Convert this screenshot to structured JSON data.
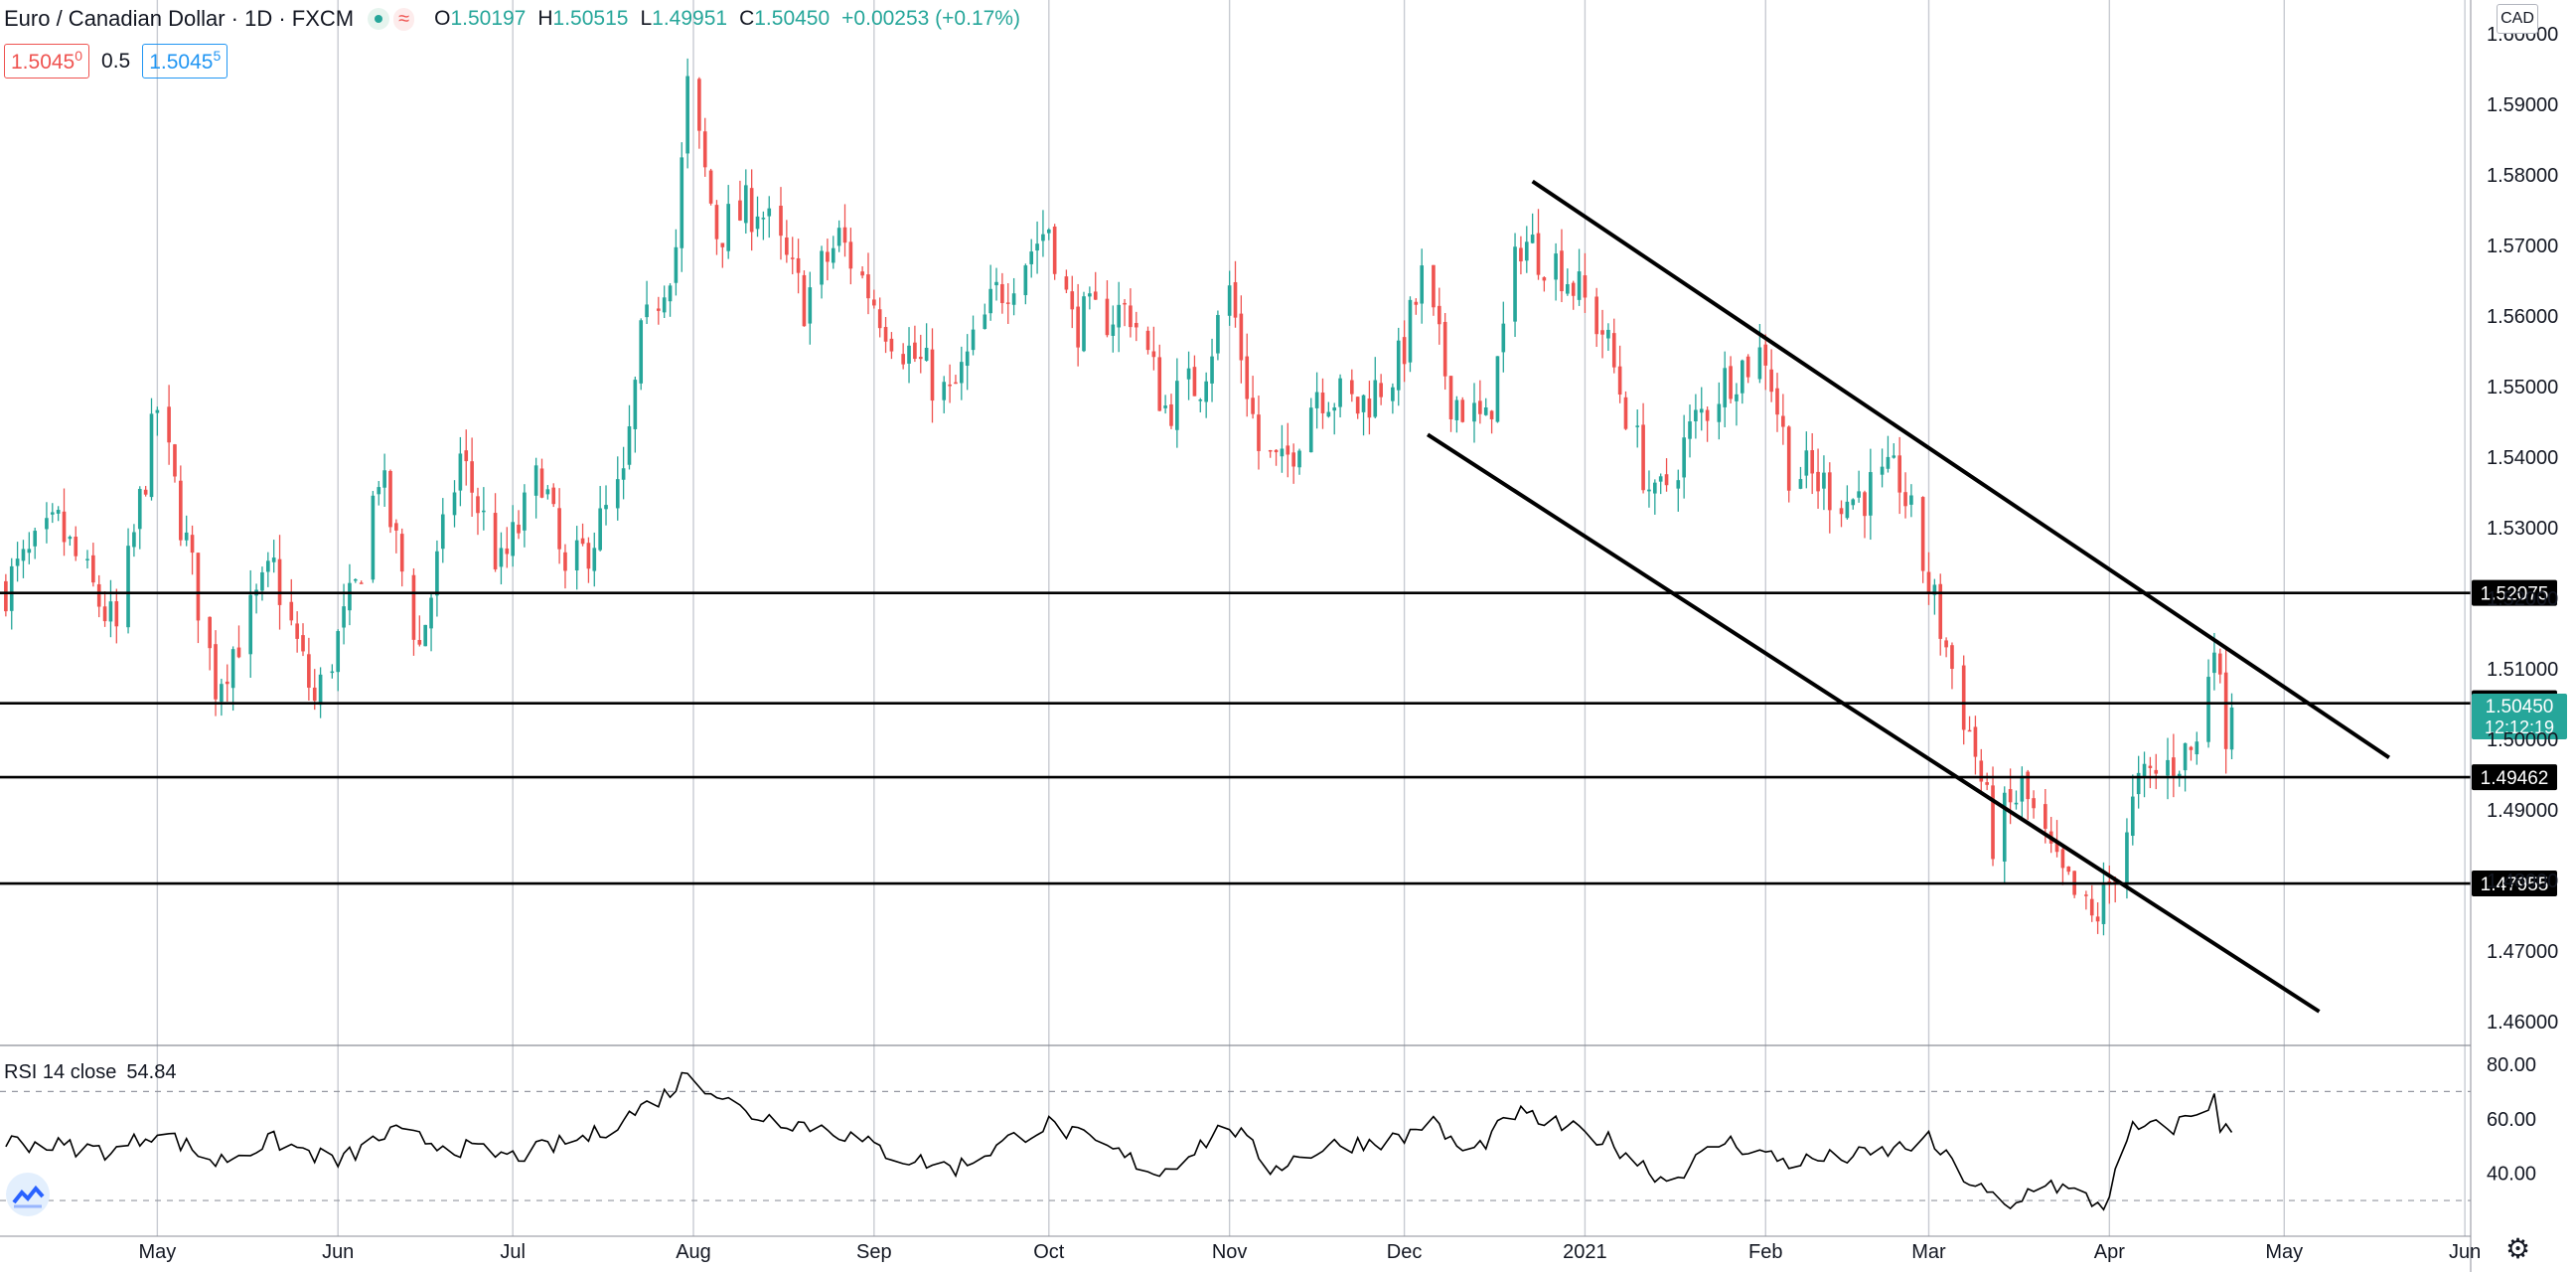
{
  "header": {
    "symbol": "Euro / Canadian Dollar · 1D · FXCM",
    "open_label": "O",
    "open": "1.50197",
    "high_label": "H",
    "high": "1.50515",
    "low_label": "L",
    "low": "1.49951",
    "close_label": "C",
    "close": "1.50450",
    "change": "+0.00253 (+0.17%)"
  },
  "quote": {
    "bid": "1.5045",
    "bid_sup": "0",
    "spread": "0.5",
    "ask": "1.5045",
    "ask_sup": "5"
  },
  "currency": "CAD",
  "rsi": {
    "label": "RSI 14 close",
    "value": "54.84"
  },
  "icons": {
    "status": "market-open-icon",
    "wave": "wave-icon",
    "logo": "tradingview-logo-icon",
    "settings": "gear-icon"
  },
  "colors": {
    "up": "#26a69a",
    "down": "#ef5350",
    "grid": "#c8cbd2",
    "line": "#000000",
    "price_tag": "#26a69a"
  },
  "chart_data": {
    "type": "candlestick",
    "timeframe": "1D",
    "ylim": [
      1.458,
      1.602
    ],
    "yticks": [
      "1.46000",
      "1.47000",
      "1.48000",
      "1.49000",
      "1.50000",
      "1.51000",
      "1.52000",
      "1.53000",
      "1.54000",
      "1.55000",
      "1.56000",
      "1.57000",
      "1.58000",
      "1.59000",
      "1.60000"
    ],
    "xticks": [
      {
        "label": "May",
        "date": "2020-05-01"
      },
      {
        "label": "Jun",
        "date": "2020-06-01"
      },
      {
        "label": "Jul",
        "date": "2020-07-01"
      },
      {
        "label": "Aug",
        "date": "2020-08-01"
      },
      {
        "label": "Sep",
        "date": "2020-09-01"
      },
      {
        "label": "Oct",
        "date": "2020-10-01"
      },
      {
        "label": "Nov",
        "date": "2020-11-01"
      },
      {
        "label": "Dec",
        "date": "2020-12-01"
      },
      {
        "label": "2021",
        "date": "2021-01-01"
      },
      {
        "label": "Feb",
        "date": "2021-02-01"
      },
      {
        "label": "Mar",
        "date": "2021-03-01"
      },
      {
        "label": "Apr",
        "date": "2021-04-01"
      },
      {
        "label": "May",
        "date": "2021-05-01"
      },
      {
        "label": "Jun",
        "date": "2021-06-01"
      }
    ],
    "x_range": [
      "2020-04-04",
      "2021-06-02"
    ],
    "grid": true,
    "horizontal_levels": [
      {
        "value": 1.52075,
        "label": "1.52075"
      },
      {
        "value": 1.50511,
        "label": "1.50511"
      },
      {
        "value": 1.49462,
        "label": "1.49462"
      },
      {
        "value": 1.47955,
        "label": "1.47955"
      }
    ],
    "last_price": {
      "value": 1.5045,
      "label": "1.50450",
      "countdown": "12:12:19"
    },
    "trendlines": [
      {
        "from": {
          "date": "2020-12-23",
          "value": 1.5791
        },
        "to": {
          "date": "2021-05-19",
          "value": 1.4974
        }
      },
      {
        "from": {
          "date": "2020-12-05",
          "value": 1.5432
        },
        "to": {
          "date": "2021-05-07",
          "value": 1.4614
        }
      }
    ],
    "anchors": [
      {
        "date": "2020-04-04",
        "close": 1.521
      },
      {
        "date": "2020-04-14",
        "close": 1.53
      },
      {
        "date": "2020-04-24",
        "close": 1.515
      },
      {
        "date": "2020-05-01",
        "close": 1.547
      },
      {
        "date": "2020-05-11",
        "close": 1.508
      },
      {
        "date": "2020-05-21",
        "close": 1.524
      },
      {
        "date": "2020-05-28",
        "close": 1.505
      },
      {
        "date": "2020-06-04",
        "close": 1.521
      },
      {
        "date": "2020-06-08",
        "close": 1.538
      },
      {
        "date": "2020-06-15",
        "close": 1.513
      },
      {
        "date": "2020-06-22",
        "close": 1.54
      },
      {
        "date": "2020-06-29",
        "close": 1.524
      },
      {
        "date": "2020-07-06",
        "close": 1.538
      },
      {
        "date": "2020-07-10",
        "close": 1.522
      },
      {
        "date": "2020-07-20",
        "close": 1.536
      },
      {
        "date": "2020-07-23",
        "close": 1.556
      },
      {
        "date": "2020-07-29",
        "close": 1.57
      },
      {
        "date": "2020-07-31",
        "close": 1.592
      },
      {
        "date": "2020-08-05",
        "close": 1.572
      },
      {
        "date": "2020-08-12",
        "close": 1.576
      },
      {
        "date": "2020-08-20",
        "close": 1.562
      },
      {
        "date": "2020-08-26",
        "close": 1.571
      },
      {
        "date": "2020-09-04",
        "close": 1.558
      },
      {
        "date": "2020-09-14",
        "close": 1.548
      },
      {
        "date": "2020-09-22",
        "close": 1.563
      },
      {
        "date": "2020-10-01",
        "close": 1.573
      },
      {
        "date": "2020-10-05",
        "close": 1.559
      },
      {
        "date": "2020-10-15",
        "close": 1.561
      },
      {
        "date": "2020-10-21",
        "close": 1.547
      },
      {
        "date": "2020-10-27",
        "close": 1.551
      },
      {
        "date": "2020-11-01",
        "close": 1.564
      },
      {
        "date": "2020-11-06",
        "close": 1.541
      },
      {
        "date": "2020-11-10",
        "close": 1.538
      },
      {
        "date": "2020-11-16",
        "close": 1.55
      },
      {
        "date": "2020-11-23",
        "close": 1.547
      },
      {
        "date": "2020-11-30",
        "close": 1.553
      },
      {
        "date": "2020-12-04",
        "close": 1.565
      },
      {
        "date": "2020-12-09",
        "close": 1.549
      },
      {
        "date": "2020-12-15",
        "close": 1.544
      },
      {
        "date": "2020-12-21",
        "close": 1.571
      },
      {
        "date": "2020-12-28",
        "close": 1.567
      },
      {
        "date": "2021-01-04",
        "close": 1.558
      },
      {
        "date": "2021-01-13",
        "close": 1.533
      },
      {
        "date": "2021-01-20",
        "close": 1.545
      },
      {
        "date": "2021-01-26",
        "close": 1.552
      },
      {
        "date": "2021-02-01",
        "close": 1.555
      },
      {
        "date": "2021-02-05",
        "close": 1.539
      },
      {
        "date": "2021-02-15",
        "close": 1.534
      },
      {
        "date": "2021-02-24",
        "close": 1.537
      },
      {
        "date": "2021-03-01",
        "close": 1.522
      },
      {
        "date": "2021-03-05",
        "close": 1.51
      },
      {
        "date": "2021-03-09",
        "close": 1.498
      },
      {
        "date": "2021-03-12",
        "close": 1.486
      },
      {
        "date": "2021-03-17",
        "close": 1.493
      },
      {
        "date": "2021-03-23",
        "close": 1.481
      },
      {
        "date": "2021-03-29",
        "close": 1.474
      },
      {
        "date": "2021-03-31",
        "close": 1.477
      },
      {
        "date": "2021-04-06",
        "close": 1.493
      },
      {
        "date": "2021-04-12",
        "close": 1.497
      },
      {
        "date": "2021-04-16",
        "close": 1.499
      },
      {
        "date": "2021-04-19",
        "close": 1.516
      },
      {
        "date": "2021-04-20",
        "close": 1.506
      },
      {
        "date": "2021-04-21",
        "close": 1.502
      },
      {
        "date": "2021-04-22",
        "close": 1.5045
      }
    ],
    "rsi": {
      "label": "RSI 14 close",
      "ylim": [
        22,
        84
      ],
      "yticks": [
        "80.00",
        "60.00",
        "40.00"
      ],
      "bands": [
        70,
        30
      ],
      "anchors": [
        {
          "date": "2020-04-04",
          "value": 52
        },
        {
          "date": "2020-04-24",
          "value": 48
        },
        {
          "date": "2020-05-01",
          "value": 56
        },
        {
          "date": "2020-05-11",
          "value": 44
        },
        {
          "date": "2020-05-21",
          "value": 52
        },
        {
          "date": "2020-06-01",
          "value": 44
        },
        {
          "date": "2020-06-10",
          "value": 55
        },
        {
          "date": "2020-06-20",
          "value": 50
        },
        {
          "date": "2020-07-01",
          "value": 46
        },
        {
          "date": "2020-07-15",
          "value": 54
        },
        {
          "date": "2020-07-28",
          "value": 70
        },
        {
          "date": "2020-07-31",
          "value": 77
        },
        {
          "date": "2020-08-10",
          "value": 62
        },
        {
          "date": "2020-08-25",
          "value": 56
        },
        {
          "date": "2020-09-05",
          "value": 46
        },
        {
          "date": "2020-09-15",
          "value": 42
        },
        {
          "date": "2020-09-25",
          "value": 53
        },
        {
          "date": "2020-10-01",
          "value": 58
        },
        {
          "date": "2020-10-10",
          "value": 50
        },
        {
          "date": "2020-10-20",
          "value": 40
        },
        {
          "date": "2020-11-01",
          "value": 58
        },
        {
          "date": "2020-11-08",
          "value": 42
        },
        {
          "date": "2020-11-18",
          "value": 50
        },
        {
          "date": "2020-12-01",
          "value": 53
        },
        {
          "date": "2020-12-05",
          "value": 60
        },
        {
          "date": "2020-12-12",
          "value": 46
        },
        {
          "date": "2020-12-20",
          "value": 62
        },
        {
          "date": "2021-01-05",
          "value": 52
        },
        {
          "date": "2021-01-15",
          "value": 37
        },
        {
          "date": "2021-01-25",
          "value": 52
        },
        {
          "date": "2021-02-05",
          "value": 44
        },
        {
          "date": "2021-02-20",
          "value": 47
        },
        {
          "date": "2021-03-01",
          "value": 52
        },
        {
          "date": "2021-03-08",
          "value": 37
        },
        {
          "date": "2021-03-15",
          "value": 26
        },
        {
          "date": "2021-03-20",
          "value": 38
        },
        {
          "date": "2021-03-31",
          "value": 28
        },
        {
          "date": "2021-04-05",
          "value": 56
        },
        {
          "date": "2021-04-12",
          "value": 57
        },
        {
          "date": "2021-04-19",
          "value": 67
        },
        {
          "date": "2021-04-20",
          "value": 56
        },
        {
          "date": "2021-04-22",
          "value": 55
        }
      ]
    }
  }
}
